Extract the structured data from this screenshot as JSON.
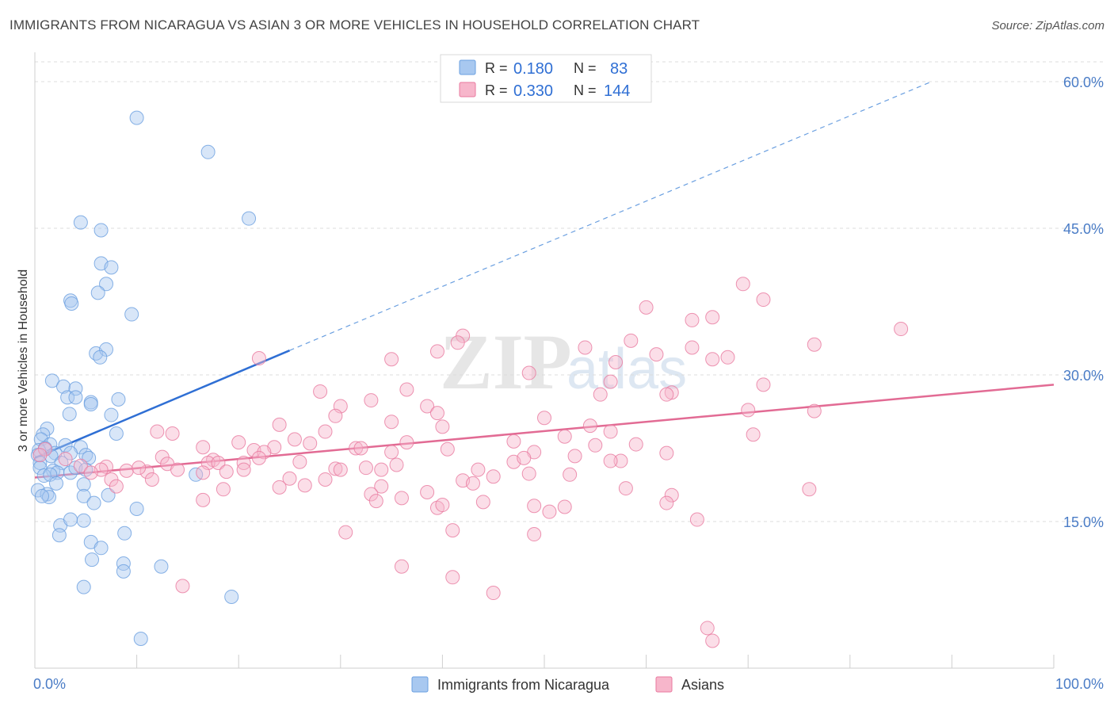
{
  "header": {
    "title": "IMMIGRANTS FROM NICARAGUA VS ASIAN 3 OR MORE VEHICLES IN HOUSEHOLD CORRELATION CHART",
    "source": "Source: ZipAtlas.com"
  },
  "watermark": {
    "zip": "ZIP",
    "atlas": "atlas"
  },
  "legend_top": {
    "rows": [
      {
        "r_label": "R = ",
        "r_value": "0.180",
        "n_label": "N = ",
        "n_value": "83",
        "color": "#a8c8f0"
      },
      {
        "r_label": "R = ",
        "r_value": "0.330",
        "n_label": "N = ",
        "n_value": "144",
        "color": "#f7b6cb"
      }
    ]
  },
  "legend_bottom": {
    "items": [
      {
        "label": "Immigrants from Nicaragua",
        "color": "#a8c8f0"
      },
      {
        "label": "Asians",
        "color": "#f7b6cb"
      }
    ]
  },
  "chart_data": {
    "type": "scatter",
    "title": "IMMIGRANTS FROM NICARAGUA VS ASIAN 3 OR MORE VEHICLES IN HOUSEHOLD CORRELATION CHART",
    "xlabel": "",
    "ylabel": "3 or more Vehicles in Household",
    "xlim": [
      0,
      100
    ],
    "ylim": [
      0,
      63
    ],
    "x_tick_labels": [
      {
        "value": 0,
        "label": "0.0%"
      },
      {
        "value": 100,
        "label": "100.0%"
      }
    ],
    "y_tick_labels": [
      {
        "value": 15,
        "label": "15.0%"
      },
      {
        "value": 30,
        "label": "30.0%"
      },
      {
        "value": 45,
        "label": "45.0%"
      },
      {
        "value": 60,
        "label": "60.0%"
      }
    ],
    "series": [
      {
        "name": "Immigrants from Nicaragua",
        "color": "#6a9fe0",
        "fill": "#a8c8f0",
        "R": 0.18,
        "N": 83,
        "trend": {
          "x0": 0,
          "y0": 21.5,
          "x1": 25,
          "y1": 32.5,
          "dashed_to_x": 88,
          "dashed_to_y": 60
        },
        "points": [
          [
            10,
            56.3
          ],
          [
            17,
            52.8
          ],
          [
            21,
            46
          ],
          [
            4.5,
            45.6
          ],
          [
            6.5,
            44.8
          ],
          [
            6.5,
            41.4
          ],
          [
            7.5,
            41
          ],
          [
            7,
            39.3
          ],
          [
            6.2,
            38.4
          ],
          [
            3.5,
            37.6
          ],
          [
            3.6,
            37.3
          ],
          [
            9.5,
            36.2
          ],
          [
            6,
            32.2
          ],
          [
            7,
            32.6
          ],
          [
            6.4,
            31.8
          ],
          [
            1.7,
            29.4
          ],
          [
            2.8,
            28.8
          ],
          [
            4,
            28.6
          ],
          [
            3.2,
            27.7
          ],
          [
            4,
            27.7
          ],
          [
            5.5,
            27.2
          ],
          [
            8.2,
            27.5
          ],
          [
            5.5,
            27
          ],
          [
            3.4,
            26
          ],
          [
            7.5,
            25.9
          ],
          [
            1.2,
            24.5
          ],
          [
            0.8,
            23.9
          ],
          [
            8,
            24
          ],
          [
            0.6,
            23.4
          ],
          [
            1.5,
            22.9
          ],
          [
            3,
            22.8
          ],
          [
            4.5,
            22.6
          ],
          [
            0.4,
            22.3
          ],
          [
            1,
            22.5
          ],
          [
            2,
            22
          ],
          [
            0.3,
            21.8
          ],
          [
            1.6,
            21.7
          ],
          [
            3.5,
            22
          ],
          [
            5,
            21.8
          ],
          [
            5.3,
            21.5
          ],
          [
            0.5,
            21
          ],
          [
            2.6,
            21
          ],
          [
            0.5,
            20.5
          ],
          [
            1.8,
            20.2
          ],
          [
            2.2,
            20
          ],
          [
            3.5,
            20
          ],
          [
            4,
            20.5
          ],
          [
            5,
            20.3
          ],
          [
            0.9,
            19.7
          ],
          [
            1.5,
            19.8
          ],
          [
            15.8,
            19.8
          ],
          [
            2.1,
            18.9
          ],
          [
            4.8,
            18.8
          ],
          [
            0.3,
            18.2
          ],
          [
            1.2,
            17.8
          ],
          [
            1.4,
            17.5
          ],
          [
            4.8,
            17.6
          ],
          [
            7.2,
            17.7
          ],
          [
            0.7,
            17.6
          ],
          [
            5.8,
            16.9
          ],
          [
            10,
            16.3
          ],
          [
            2.5,
            14.6
          ],
          [
            3.5,
            15.2
          ],
          [
            4.8,
            15.1
          ],
          [
            8.8,
            13.8
          ],
          [
            2.4,
            13.6
          ],
          [
            5.5,
            12.9
          ],
          [
            6.5,
            12.3
          ],
          [
            8.7,
            10.7
          ],
          [
            8.7,
            9.9
          ],
          [
            12.4,
            10.4
          ],
          [
            5.6,
            11.1
          ],
          [
            4.8,
            8.3
          ],
          [
            19.3,
            7.3
          ],
          [
            10.4,
            3
          ]
        ]
      },
      {
        "name": "Asians",
        "color": "#e9799f",
        "fill": "#f7b6cb",
        "R": 0.33,
        "N": 144,
        "trend": {
          "x0": 0,
          "y0": 19.5,
          "x1": 100,
          "y1": 29
        },
        "points": [
          [
            69.5,
            39.3
          ],
          [
            71.5,
            37.7
          ],
          [
            60,
            36.9
          ],
          [
            66.5,
            35.9
          ],
          [
            64.5,
            35.6
          ],
          [
            85,
            34.7
          ],
          [
            42,
            34
          ],
          [
            58.5,
            33.5
          ],
          [
            76.5,
            33.1
          ],
          [
            54,
            32.8
          ],
          [
            41.5,
            33.3
          ],
          [
            64.5,
            32.8
          ],
          [
            39.5,
            32.4
          ],
          [
            61,
            32.1
          ],
          [
            66.5,
            31.6
          ],
          [
            68,
            31.8
          ],
          [
            22,
            31.7
          ],
          [
            35,
            31.6
          ],
          [
            57,
            31.3
          ],
          [
            48.5,
            30.2
          ],
          [
            56.5,
            29.3
          ],
          [
            71.5,
            29
          ],
          [
            36.5,
            28.5
          ],
          [
            28,
            28.3
          ],
          [
            62.5,
            28.2
          ],
          [
            62,
            28
          ],
          [
            55.5,
            28
          ],
          [
            33,
            27.4
          ],
          [
            38.5,
            26.8
          ],
          [
            30,
            26.8
          ],
          [
            39.5,
            26.1
          ],
          [
            29.5,
            25.8
          ],
          [
            50,
            25.6
          ],
          [
            70,
            26.4
          ],
          [
            76.5,
            26.3
          ],
          [
            35,
            25.2
          ],
          [
            24,
            24.9
          ],
          [
            40,
            24.7
          ],
          [
            54.5,
            24.8
          ],
          [
            12,
            24.2
          ],
          [
            13.5,
            24
          ],
          [
            28.5,
            24.2
          ],
          [
            56.5,
            24.2
          ],
          [
            52,
            23.7
          ],
          [
            70.5,
            23.9
          ],
          [
            25.5,
            23.4
          ],
          [
            27,
            23
          ],
          [
            47,
            23.2
          ],
          [
            20,
            23.1
          ],
          [
            36.5,
            23.1
          ],
          [
            59,
            22.9
          ],
          [
            16.5,
            22.6
          ],
          [
            31.5,
            22.5
          ],
          [
            55,
            22.8
          ],
          [
            32,
            22.5
          ],
          [
            40.5,
            22.4
          ],
          [
            23.5,
            22.6
          ],
          [
            35,
            22.1
          ],
          [
            1,
            22.4
          ],
          [
            21.5,
            22.3
          ],
          [
            22.5,
            22.1
          ],
          [
            49,
            22.1
          ],
          [
            62,
            22
          ],
          [
            0.5,
            21.8
          ],
          [
            12.5,
            21.6
          ],
          [
            22,
            21.5
          ],
          [
            53,
            21.7
          ],
          [
            3,
            21.4
          ],
          [
            17.5,
            21.3
          ],
          [
            17,
            21
          ],
          [
            57.5,
            21.2
          ],
          [
            47,
            21.1
          ],
          [
            26,
            21.1
          ],
          [
            48,
            21.5
          ],
          [
            20.5,
            21
          ],
          [
            13,
            20.9
          ],
          [
            18,
            21
          ],
          [
            35.5,
            20.8
          ],
          [
            4.5,
            20.7
          ],
          [
            7,
            20.6
          ],
          [
            32.5,
            20.5
          ],
          [
            56.5,
            21.2
          ],
          [
            34,
            20.3
          ],
          [
            9,
            20.2
          ],
          [
            29.5,
            20.4
          ],
          [
            11,
            20.1
          ],
          [
            6.5,
            20.3
          ],
          [
            18.8,
            20.1
          ],
          [
            20.5,
            20.3
          ],
          [
            10.2,
            20.5
          ],
          [
            14,
            20.3
          ],
          [
            43.5,
            20.3
          ],
          [
            30,
            20.3
          ],
          [
            5.5,
            20
          ],
          [
            16.5,
            20
          ],
          [
            48.5,
            19.9
          ],
          [
            52.5,
            19.8
          ],
          [
            45,
            19.6
          ],
          [
            25,
            19.4
          ],
          [
            11.5,
            19.3
          ],
          [
            7.5,
            19.3
          ],
          [
            28.5,
            19.3
          ],
          [
            42,
            19.2
          ],
          [
            43,
            18.9
          ],
          [
            26.5,
            18.7
          ],
          [
            24,
            18.5
          ],
          [
            34,
            18.6
          ],
          [
            8,
            18.6
          ],
          [
            18.5,
            18.3
          ],
          [
            58,
            18.4
          ],
          [
            76,
            18.3
          ],
          [
            38.5,
            18
          ],
          [
            33,
            17.8
          ],
          [
            62.5,
            17.7
          ],
          [
            36,
            17.4
          ],
          [
            33.5,
            17.1
          ],
          [
            16.5,
            17.2
          ],
          [
            44,
            17
          ],
          [
            62,
            16.9
          ],
          [
            52,
            16.5
          ],
          [
            49,
            16.6
          ],
          [
            50.5,
            16
          ],
          [
            39.5,
            16.4
          ],
          [
            40,
            16.7
          ],
          [
            65,
            15.2
          ],
          [
            41,
            14.1
          ],
          [
            30.5,
            13.9
          ],
          [
            49,
            13.7
          ],
          [
            36,
            10.4
          ],
          [
            41,
            9.3
          ],
          [
            14.5,
            8.4
          ],
          [
            45,
            7.7
          ],
          [
            66,
            4.1
          ],
          [
            66.5,
            2.8
          ]
        ]
      }
    ]
  }
}
